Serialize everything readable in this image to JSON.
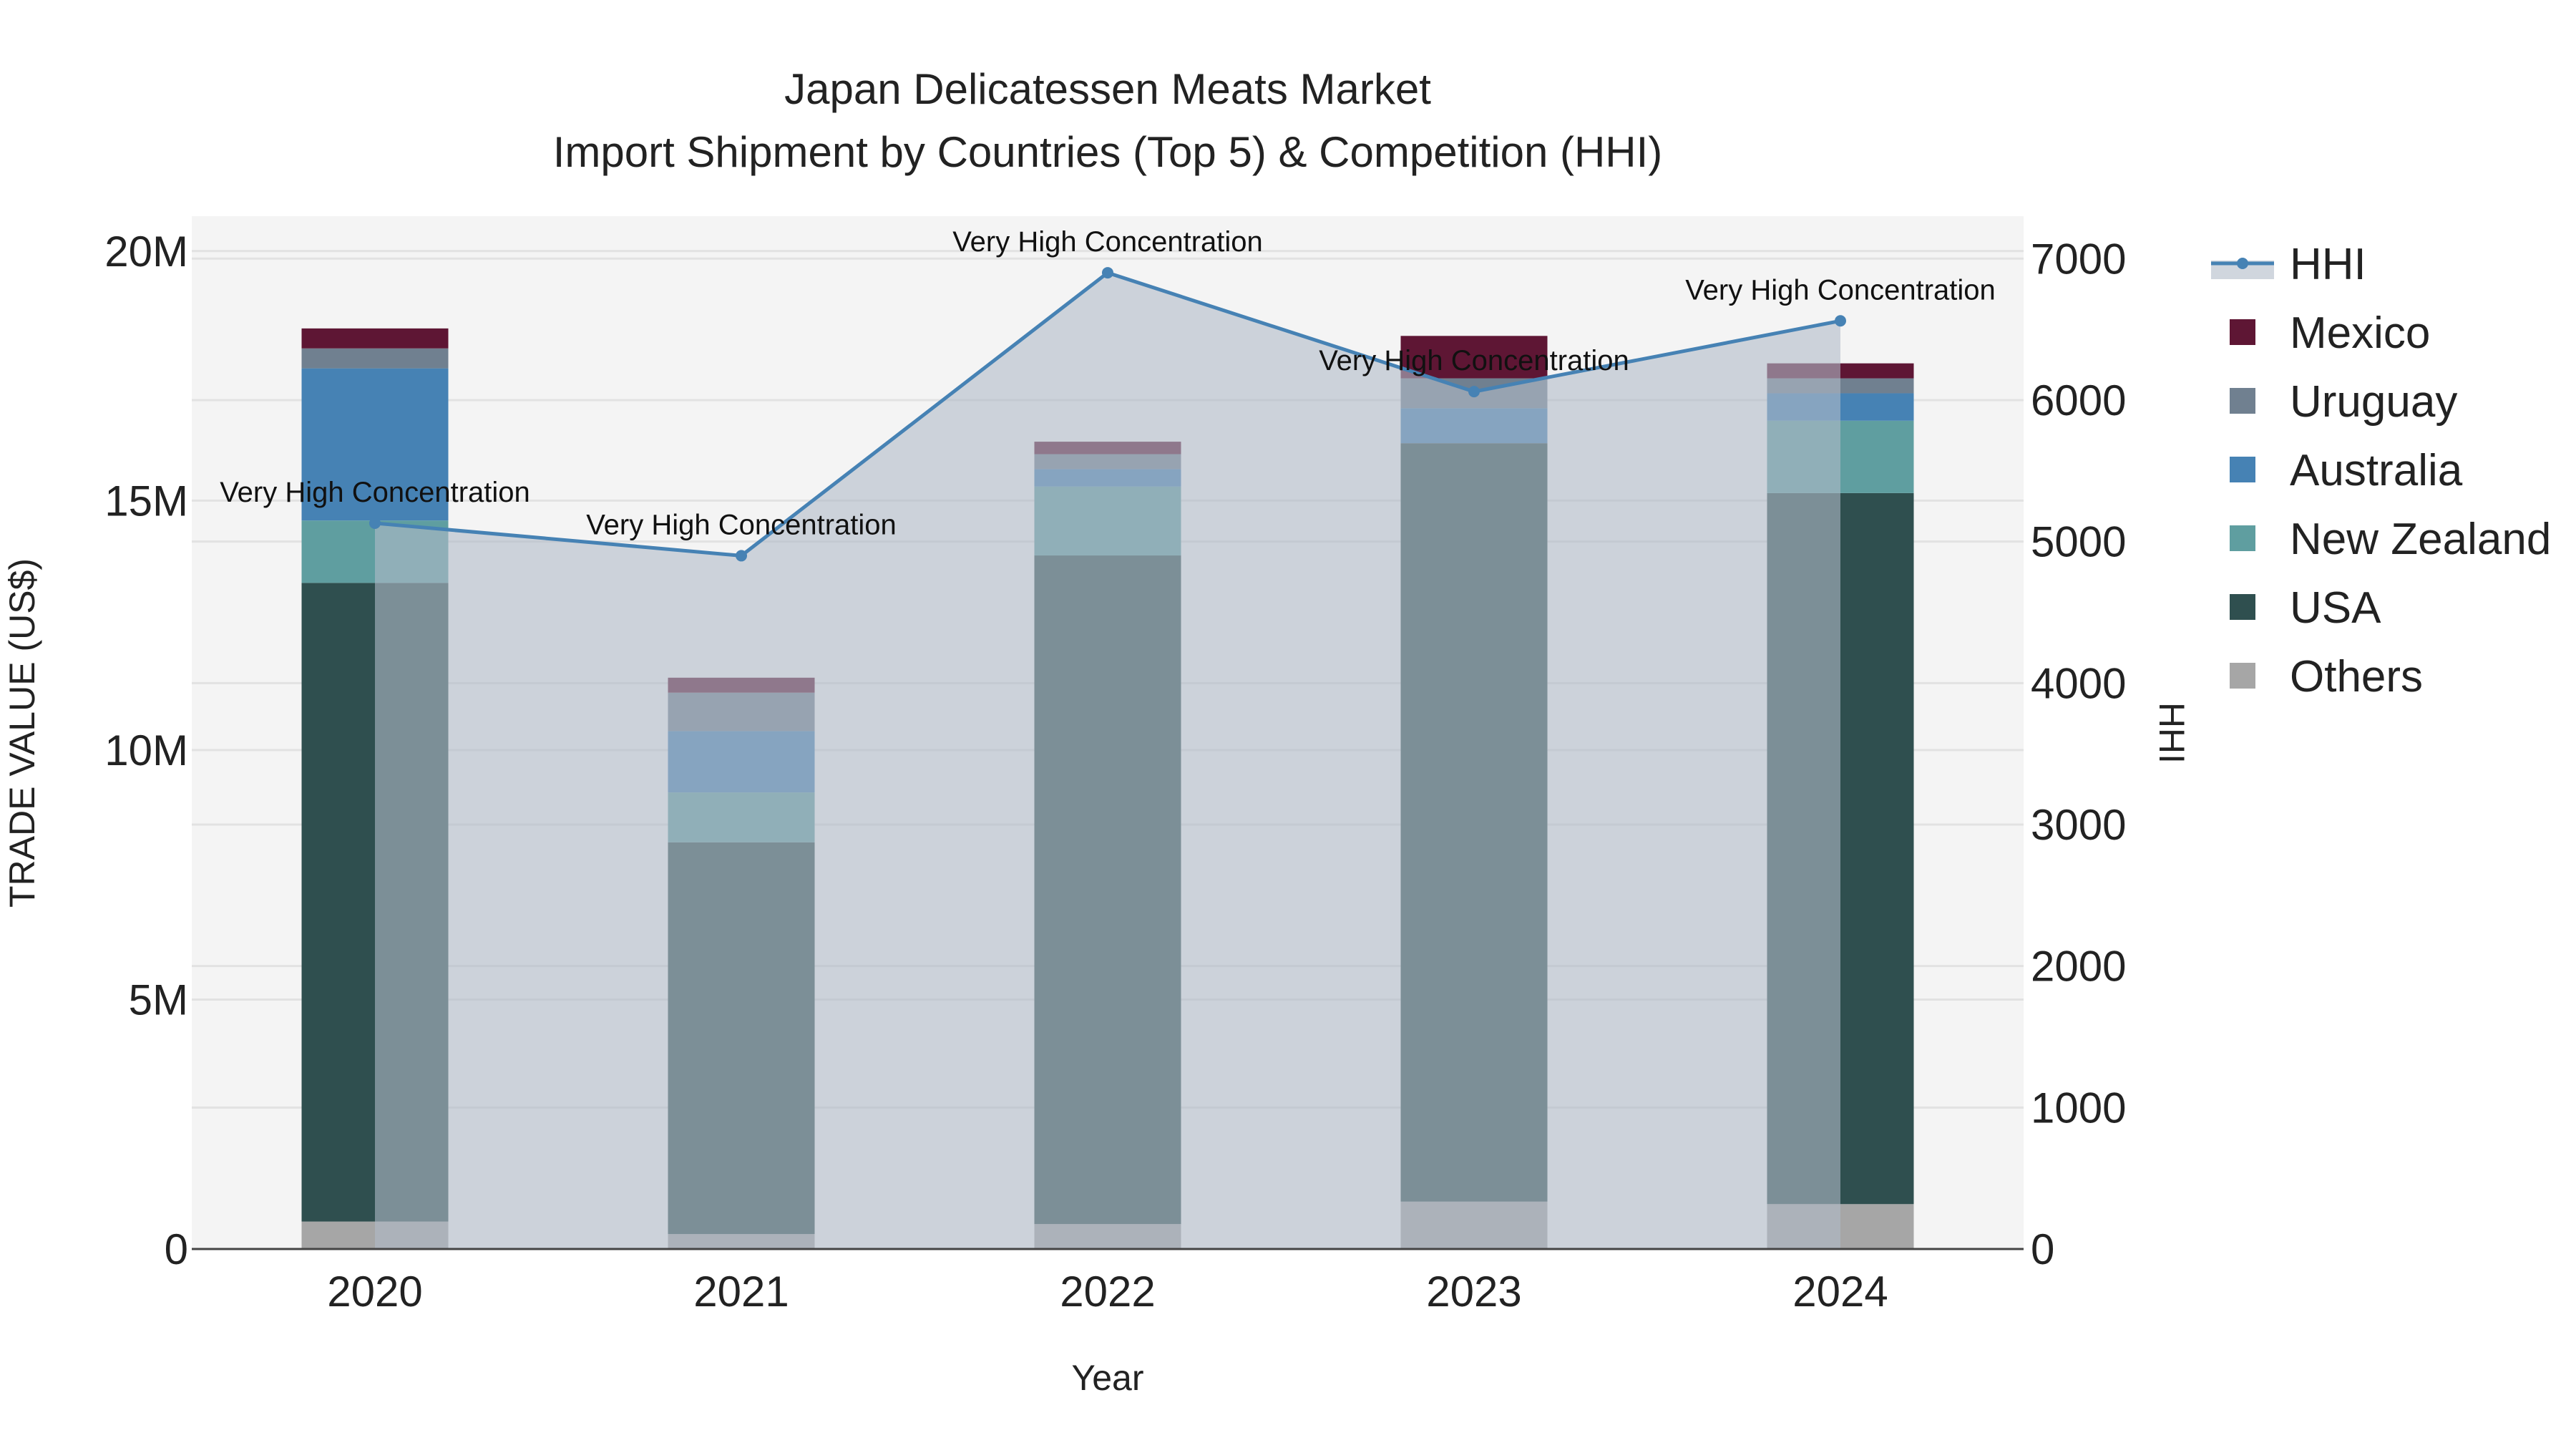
{
  "chart_data": {
    "type": "bar",
    "title": "Japan Delicatessen Meats Market",
    "subtitle": "Import Shipment by Countries (Top 5) & Competition (HHI)",
    "xlabel": "Year",
    "ylabel": "TRADE VALUE (US$)",
    "y2label": "HHI",
    "categories": [
      "2020",
      "2021",
      "2022",
      "2023",
      "2024"
    ],
    "ylim": [
      0,
      20700000
    ],
    "y2lim": [
      0,
      7300
    ],
    "y_ticks": [
      {
        "value": 0,
        "label": "0"
      },
      {
        "value": 5000000,
        "label": "5M"
      },
      {
        "value": 10000000,
        "label": "10M"
      },
      {
        "value": 15000000,
        "label": "15M"
      },
      {
        "value": 20000000,
        "label": "20M"
      }
    ],
    "y2_ticks": [
      0,
      1000,
      2000,
      3000,
      4000,
      5000,
      6000,
      7000
    ],
    "series": [
      {
        "name": "Others",
        "color": "#a6a6a6",
        "values": [
          550000,
          300000,
          500000,
          950000,
          900000
        ]
      },
      {
        "name": "USA",
        "color": "#2f4f4f",
        "values": [
          12800000,
          7850000,
          13400000,
          15200000,
          14250000
        ]
      },
      {
        "name": "New Zealand",
        "color": "#5f9ea0",
        "values": [
          1250000,
          1000000,
          1380000,
          0,
          1450000
        ]
      },
      {
        "name": "Australia",
        "color": "#4682b4",
        "values": [
          3050000,
          1230000,
          350000,
          700000,
          550000
        ]
      },
      {
        "name": "Uruguay",
        "color": "#708090",
        "values": [
          400000,
          770000,
          300000,
          600000,
          300000
        ]
      },
      {
        "name": "Mexico",
        "color": "#5e1634",
        "values": [
          400000,
          300000,
          250000,
          850000,
          300000
        ]
      }
    ],
    "hhi": {
      "name": "HHI",
      "color": "#4682b4",
      "values": [
        5130,
        4900,
        6900,
        6060,
        6560
      ],
      "annotations": [
        "Very High Concentration",
        "Very High Concentration",
        "Very High Concentration",
        "Very High Concentration",
        "Very High Concentration"
      ]
    },
    "legend": [
      "HHI",
      "Mexico",
      "Uruguay",
      "Australia",
      "New Zealand",
      "USA",
      "Others"
    ],
    "legend_position": "right"
  }
}
